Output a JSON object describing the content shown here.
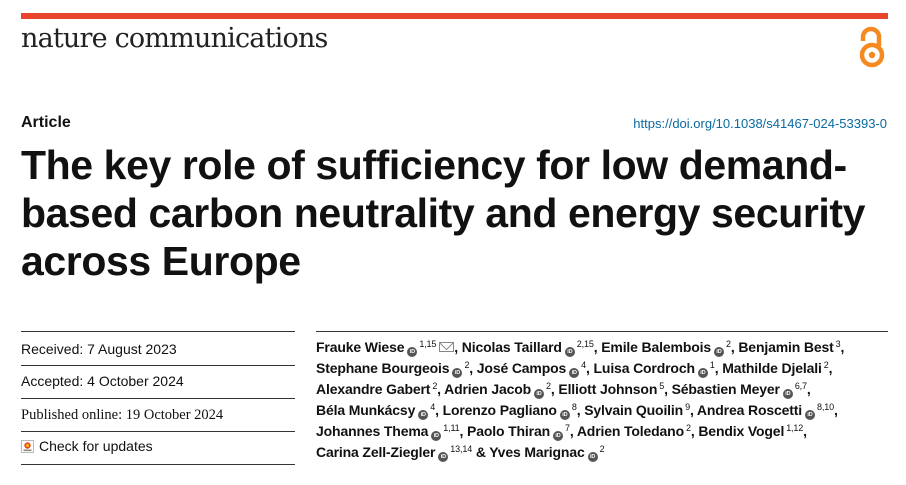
{
  "journal": {
    "name": "nature communications",
    "open_access_icon": "open-access-icon"
  },
  "article": {
    "type": "Article",
    "doi": "https://doi.org/10.1038/s41467-024-53393-0",
    "title": "The key role of sufficiency for low demand-based carbon neutrality and energy security across Europe"
  },
  "dates": {
    "received": "Received: 7 August 2023",
    "accepted": "Accepted: 4 October 2024",
    "published": "Published online: 19 October 2024"
  },
  "updates": {
    "label": "Check for updates",
    "icon": "check-updates-icon"
  },
  "authors": [
    {
      "name": "Frauke Wiese",
      "aff": "1,15",
      "orcid": true,
      "email": true
    },
    {
      "name": "Nicolas Taillard",
      "aff": "2,15",
      "orcid": true
    },
    {
      "name": "Emile Balembois",
      "aff": "2",
      "orcid": true
    },
    {
      "name": "Benjamin Best",
      "aff": "3",
      "orcid": false
    },
    {
      "name": "Stephane Bourgeois",
      "aff": "2",
      "orcid": true
    },
    {
      "name": "José Campos",
      "aff": "4",
      "orcid": true
    },
    {
      "name": "Luisa Cordroch",
      "aff": "1",
      "orcid": true
    },
    {
      "name": "Mathilde Djelali",
      "aff": "2",
      "orcid": false
    },
    {
      "name": "Alexandre Gabert",
      "aff": "2",
      "orcid": false
    },
    {
      "name": "Adrien Jacob",
      "aff": "2",
      "orcid": true
    },
    {
      "name": "Elliott Johnson",
      "aff": "5",
      "orcid": false
    },
    {
      "name": "Sébastien Meyer",
      "aff": "6,7",
      "orcid": true
    },
    {
      "name": "Béla Munkácsy",
      "aff": "4",
      "orcid": true
    },
    {
      "name": "Lorenzo Pagliano",
      "aff": "8",
      "orcid": true
    },
    {
      "name": "Sylvain Quoilin",
      "aff": "9",
      "orcid": false
    },
    {
      "name": "Andrea Roscetti",
      "aff": "8,10",
      "orcid": true
    },
    {
      "name": "Johannes Thema",
      "aff": "1,11",
      "orcid": true
    },
    {
      "name": "Paolo Thiran",
      "aff": "7",
      "orcid": true
    },
    {
      "name": "Adrien Toledano",
      "aff": "2",
      "orcid": false
    },
    {
      "name": "Bendix Vogel",
      "aff": "1,12",
      "orcid": false
    },
    {
      "name": "Carina Zell-Ziegler",
      "aff": "13,14",
      "orcid": true
    },
    {
      "name": "Yves Marignac",
      "aff": "2",
      "orcid": true
    }
  ],
  "author_lines": [
    [
      0,
      1,
      2,
      3
    ],
    [
      4,
      5,
      6,
      7
    ],
    [
      8,
      9,
      10,
      11
    ],
    [
      12,
      13,
      14,
      15
    ],
    [
      16,
      17,
      18,
      19
    ],
    [
      20,
      21
    ]
  ],
  "colors": {
    "accent": "#e8452c",
    "link": "#0a6aa1",
    "orcid_badge": "#555555"
  }
}
